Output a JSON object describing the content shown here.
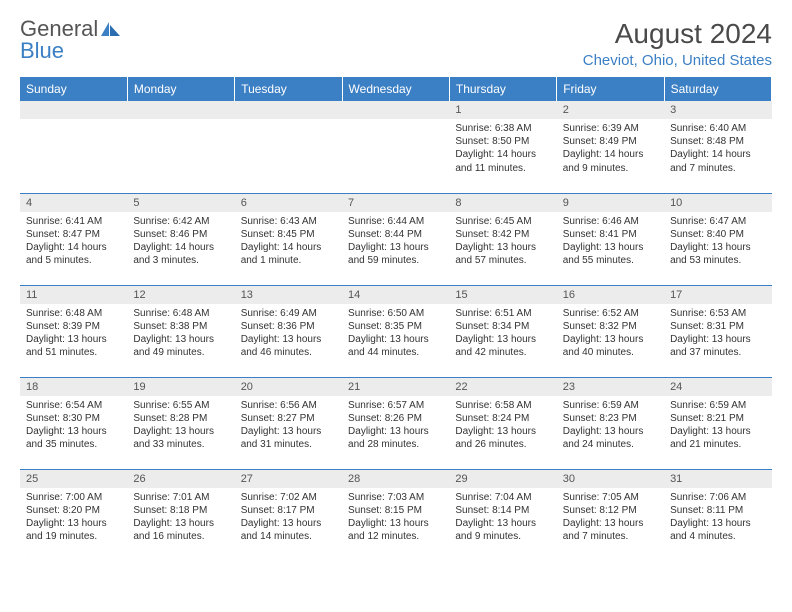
{
  "logo": {
    "text1": "General",
    "text2": "Blue",
    "accent_color": "#3b7fc4"
  },
  "title": "August 2024",
  "location": "Cheviot, Ohio, United States",
  "colors": {
    "header_bg": "#3b7fc4",
    "header_text": "#ffffff",
    "daynum_bg": "#ececec",
    "border": "#3b7fc4",
    "text": "#333333"
  },
  "dayHeaders": [
    "Sunday",
    "Monday",
    "Tuesday",
    "Wednesday",
    "Thursday",
    "Friday",
    "Saturday"
  ],
  "weeks": [
    [
      {
        "num": "",
        "sunrise": "",
        "sunset": "",
        "daylight": ""
      },
      {
        "num": "",
        "sunrise": "",
        "sunset": "",
        "daylight": ""
      },
      {
        "num": "",
        "sunrise": "",
        "sunset": "",
        "daylight": ""
      },
      {
        "num": "",
        "sunrise": "",
        "sunset": "",
        "daylight": ""
      },
      {
        "num": "1",
        "sunrise": "Sunrise: 6:38 AM",
        "sunset": "Sunset: 8:50 PM",
        "daylight": "Daylight: 14 hours and 11 minutes."
      },
      {
        "num": "2",
        "sunrise": "Sunrise: 6:39 AM",
        "sunset": "Sunset: 8:49 PM",
        "daylight": "Daylight: 14 hours and 9 minutes."
      },
      {
        "num": "3",
        "sunrise": "Sunrise: 6:40 AM",
        "sunset": "Sunset: 8:48 PM",
        "daylight": "Daylight: 14 hours and 7 minutes."
      }
    ],
    [
      {
        "num": "4",
        "sunrise": "Sunrise: 6:41 AM",
        "sunset": "Sunset: 8:47 PM",
        "daylight": "Daylight: 14 hours and 5 minutes."
      },
      {
        "num": "5",
        "sunrise": "Sunrise: 6:42 AM",
        "sunset": "Sunset: 8:46 PM",
        "daylight": "Daylight: 14 hours and 3 minutes."
      },
      {
        "num": "6",
        "sunrise": "Sunrise: 6:43 AM",
        "sunset": "Sunset: 8:45 PM",
        "daylight": "Daylight: 14 hours and 1 minute."
      },
      {
        "num": "7",
        "sunrise": "Sunrise: 6:44 AM",
        "sunset": "Sunset: 8:44 PM",
        "daylight": "Daylight: 13 hours and 59 minutes."
      },
      {
        "num": "8",
        "sunrise": "Sunrise: 6:45 AM",
        "sunset": "Sunset: 8:42 PM",
        "daylight": "Daylight: 13 hours and 57 minutes."
      },
      {
        "num": "9",
        "sunrise": "Sunrise: 6:46 AM",
        "sunset": "Sunset: 8:41 PM",
        "daylight": "Daylight: 13 hours and 55 minutes."
      },
      {
        "num": "10",
        "sunrise": "Sunrise: 6:47 AM",
        "sunset": "Sunset: 8:40 PM",
        "daylight": "Daylight: 13 hours and 53 minutes."
      }
    ],
    [
      {
        "num": "11",
        "sunrise": "Sunrise: 6:48 AM",
        "sunset": "Sunset: 8:39 PM",
        "daylight": "Daylight: 13 hours and 51 minutes."
      },
      {
        "num": "12",
        "sunrise": "Sunrise: 6:48 AM",
        "sunset": "Sunset: 8:38 PM",
        "daylight": "Daylight: 13 hours and 49 minutes."
      },
      {
        "num": "13",
        "sunrise": "Sunrise: 6:49 AM",
        "sunset": "Sunset: 8:36 PM",
        "daylight": "Daylight: 13 hours and 46 minutes."
      },
      {
        "num": "14",
        "sunrise": "Sunrise: 6:50 AM",
        "sunset": "Sunset: 8:35 PM",
        "daylight": "Daylight: 13 hours and 44 minutes."
      },
      {
        "num": "15",
        "sunrise": "Sunrise: 6:51 AM",
        "sunset": "Sunset: 8:34 PM",
        "daylight": "Daylight: 13 hours and 42 minutes."
      },
      {
        "num": "16",
        "sunrise": "Sunrise: 6:52 AM",
        "sunset": "Sunset: 8:32 PM",
        "daylight": "Daylight: 13 hours and 40 minutes."
      },
      {
        "num": "17",
        "sunrise": "Sunrise: 6:53 AM",
        "sunset": "Sunset: 8:31 PM",
        "daylight": "Daylight: 13 hours and 37 minutes."
      }
    ],
    [
      {
        "num": "18",
        "sunrise": "Sunrise: 6:54 AM",
        "sunset": "Sunset: 8:30 PM",
        "daylight": "Daylight: 13 hours and 35 minutes."
      },
      {
        "num": "19",
        "sunrise": "Sunrise: 6:55 AM",
        "sunset": "Sunset: 8:28 PM",
        "daylight": "Daylight: 13 hours and 33 minutes."
      },
      {
        "num": "20",
        "sunrise": "Sunrise: 6:56 AM",
        "sunset": "Sunset: 8:27 PM",
        "daylight": "Daylight: 13 hours and 31 minutes."
      },
      {
        "num": "21",
        "sunrise": "Sunrise: 6:57 AM",
        "sunset": "Sunset: 8:26 PM",
        "daylight": "Daylight: 13 hours and 28 minutes."
      },
      {
        "num": "22",
        "sunrise": "Sunrise: 6:58 AM",
        "sunset": "Sunset: 8:24 PM",
        "daylight": "Daylight: 13 hours and 26 minutes."
      },
      {
        "num": "23",
        "sunrise": "Sunrise: 6:59 AM",
        "sunset": "Sunset: 8:23 PM",
        "daylight": "Daylight: 13 hours and 24 minutes."
      },
      {
        "num": "24",
        "sunrise": "Sunrise: 6:59 AM",
        "sunset": "Sunset: 8:21 PM",
        "daylight": "Daylight: 13 hours and 21 minutes."
      }
    ],
    [
      {
        "num": "25",
        "sunrise": "Sunrise: 7:00 AM",
        "sunset": "Sunset: 8:20 PM",
        "daylight": "Daylight: 13 hours and 19 minutes."
      },
      {
        "num": "26",
        "sunrise": "Sunrise: 7:01 AM",
        "sunset": "Sunset: 8:18 PM",
        "daylight": "Daylight: 13 hours and 16 minutes."
      },
      {
        "num": "27",
        "sunrise": "Sunrise: 7:02 AM",
        "sunset": "Sunset: 8:17 PM",
        "daylight": "Daylight: 13 hours and 14 minutes."
      },
      {
        "num": "28",
        "sunrise": "Sunrise: 7:03 AM",
        "sunset": "Sunset: 8:15 PM",
        "daylight": "Daylight: 13 hours and 12 minutes."
      },
      {
        "num": "29",
        "sunrise": "Sunrise: 7:04 AM",
        "sunset": "Sunset: 8:14 PM",
        "daylight": "Daylight: 13 hours and 9 minutes."
      },
      {
        "num": "30",
        "sunrise": "Sunrise: 7:05 AM",
        "sunset": "Sunset: 8:12 PM",
        "daylight": "Daylight: 13 hours and 7 minutes."
      },
      {
        "num": "31",
        "sunrise": "Sunrise: 7:06 AM",
        "sunset": "Sunset: 8:11 PM",
        "daylight": "Daylight: 13 hours and 4 minutes."
      }
    ]
  ]
}
